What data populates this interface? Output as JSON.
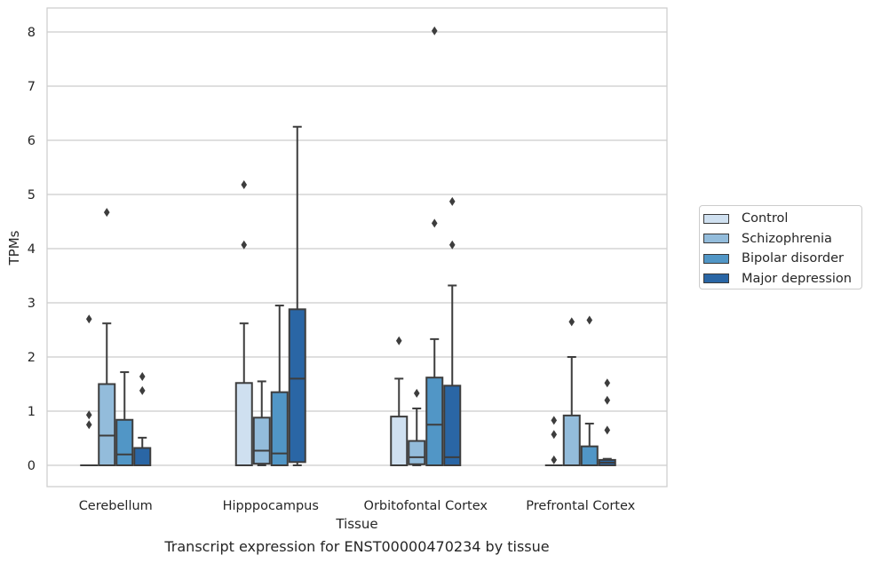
{
  "chart_data": {
    "type": "boxplot",
    "title": "Transcript expression for ENST00000470234 by tissue",
    "xlabel": "Tissue",
    "ylabel": "TPMs",
    "ylim": [
      -0.4,
      8.45
    ],
    "yticks": [
      0,
      1,
      2,
      3,
      4,
      5,
      6,
      7,
      8
    ],
    "grid": "horizontal",
    "legend_position": "right",
    "categories": [
      "Cerebellum",
      "Hipppocampus",
      "Orbitofontal Cortex",
      "Prefrontal Cortex"
    ],
    "series": [
      {
        "name": "Control",
        "color": "#cfe0f0",
        "boxes": [
          {
            "min": 0,
            "q1": 0,
            "median": 0,
            "q3": 0,
            "max": 0,
            "outliers": []
          },
          {
            "min": 0,
            "q1": 0,
            "median": 0,
            "q3": 1.52,
            "max": 2.62,
            "outliers": [
              4.07,
              5.18
            ]
          },
          {
            "min": 0,
            "q1": 0,
            "median": 0,
            "q3": 0.9,
            "max": 1.6,
            "outliers": [
              2.3
            ]
          },
          {
            "min": 0,
            "q1": 0,
            "median": 0,
            "q3": 0,
            "max": 0,
            "outliers": []
          }
        ]
      },
      {
        "name": "Schizophrenia",
        "color": "#93bcdb",
        "boxes": [
          {
            "min": 0,
            "q1": 0,
            "median": 0.55,
            "q3": 1.5,
            "max": 2.62,
            "outliers": [
              4.67
            ]
          },
          {
            "min": 0,
            "q1": 0.03,
            "median": 0.27,
            "q3": 0.88,
            "max": 1.55,
            "outliers": []
          },
          {
            "min": 0,
            "q1": 0.02,
            "median": 0.15,
            "q3": 0.45,
            "max": 1.05,
            "outliers": [
              1.33
            ]
          },
          {
            "min": 0,
            "q1": 0,
            "median": 0,
            "q3": 0.92,
            "max": 2.0,
            "outliers": [
              2.65
            ]
          }
        ]
      },
      {
        "name": "Bipolar disorder",
        "color": "#5196c6",
        "boxes": [
          {
            "min": 0,
            "q1": 0,
            "median": 0.2,
            "q3": 0.84,
            "max": 1.72,
            "outliers": []
          },
          {
            "min": 0,
            "q1": 0,
            "median": 0.22,
            "q3": 1.35,
            "max": 2.95,
            "outliers": []
          },
          {
            "min": 0,
            "q1": 0,
            "median": 0.75,
            "q3": 1.62,
            "max": 2.33,
            "outliers": [
              4.47,
              8.02
            ]
          },
          {
            "min": 0,
            "q1": 0,
            "median": 0,
            "q3": 0.35,
            "max": 0.77,
            "outliers": [
              2.68
            ]
          }
        ]
      },
      {
        "name": "Major depression",
        "color": "#2a66a5",
        "boxes": [
          {
            "min": 0,
            "q1": 0,
            "median": 0,
            "q3": 0.32,
            "max": 0.51,
            "outliers": [
              1.38,
              1.64
            ]
          },
          {
            "min": 0,
            "q1": 0.06,
            "median": 1.6,
            "q3": 2.88,
            "max": 6.25,
            "outliers": []
          },
          {
            "min": 0,
            "q1": 0,
            "median": 0.15,
            "q3": 1.47,
            "max": 3.32,
            "outliers": [
              4.07,
              4.87
            ]
          },
          {
            "min": 0,
            "q1": 0,
            "median": 0.05,
            "q3": 0.1,
            "max": 0.12,
            "outliers": [
              0.65,
              1.2,
              1.52
            ]
          }
        ]
      }
    ],
    "extra_outliers": [
      {
        "category": "Cerebellum",
        "series": "Schizophrenia",
        "values": []
      },
      {
        "category": "Cerebellum",
        "series": "Control",
        "values": [
          0.75,
          0.93,
          2.7
        ]
      },
      {
        "category": "Prefrontal Cortex",
        "series": "Control",
        "values": [
          0.1,
          0.57,
          0.83
        ]
      }
    ]
  }
}
